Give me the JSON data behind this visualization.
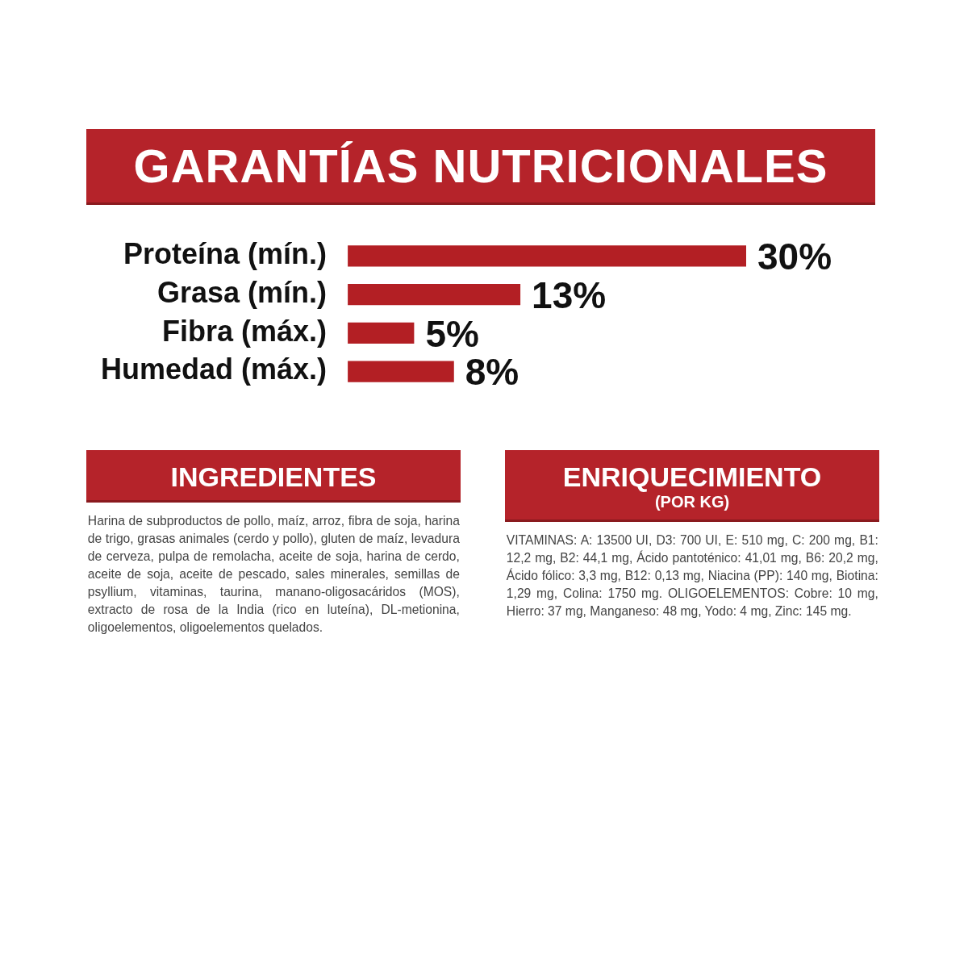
{
  "chart_data": [
    {
      "type": "bar",
      "orientation": "horizontal",
      "title": "GARANTÍAS NUTRICIONALES",
      "categories": [
        "Proteína (mín.)",
        "Grasa (mín.)",
        "Fibra (máx.)",
        "Humedad (máx.)"
      ],
      "values": [
        30,
        13,
        5,
        8
      ],
      "value_labels": [
        "30%",
        "13%",
        "5%",
        "8%"
      ],
      "color": "#b31f24",
      "tick_labels": "y"
    },
    {
      "type": "other",
      "title": "INGREDIENTES",
      "annotations": [
        "Harina de subproductos de pollo, maíz, arroz, fibra de soja, harina de trigo, grasas animales (cerdo y pollo), gluten de maíz, levadura de cerveza, pulpa de remolacha, aceite de soja, harina de cerdo, aceite de soja, aceite de pescado, sales minerales, semillas de psyllium, vitaminas, taurina, manano-oligosacáridos (MOS), extracto de rosa de la India (rico en luteína), DL-metionina, oligoelementos, oligoelementos quelados."
      ]
    },
    {
      "type": "other",
      "title": "ENRIQUECIMIENTO",
      "subtitle": "(POR KG)",
      "annotations": [
        "VITAMINAS: A: 13500 UI, D3: 700 UI, E: 510 mg, C: 200 mg, B1: 12,2 mg, B2: 44,1 mg, Ácido pantoténico: 41,01 mg, B6: 20,2 mg, Ácido fólico: 3,3 mg, B12: 0,13 mg, Niacina (PP): 140 mg, Biotina: 1,29 mg, Colina: 1750 mg. OLIGOELEMENTOS: Cobre: 10 mg, Hierro: 37 mg, Manganeso: 48 mg, Yodo: 4 mg, Zinc: 145 mg."
      ]
    }
  ]
}
